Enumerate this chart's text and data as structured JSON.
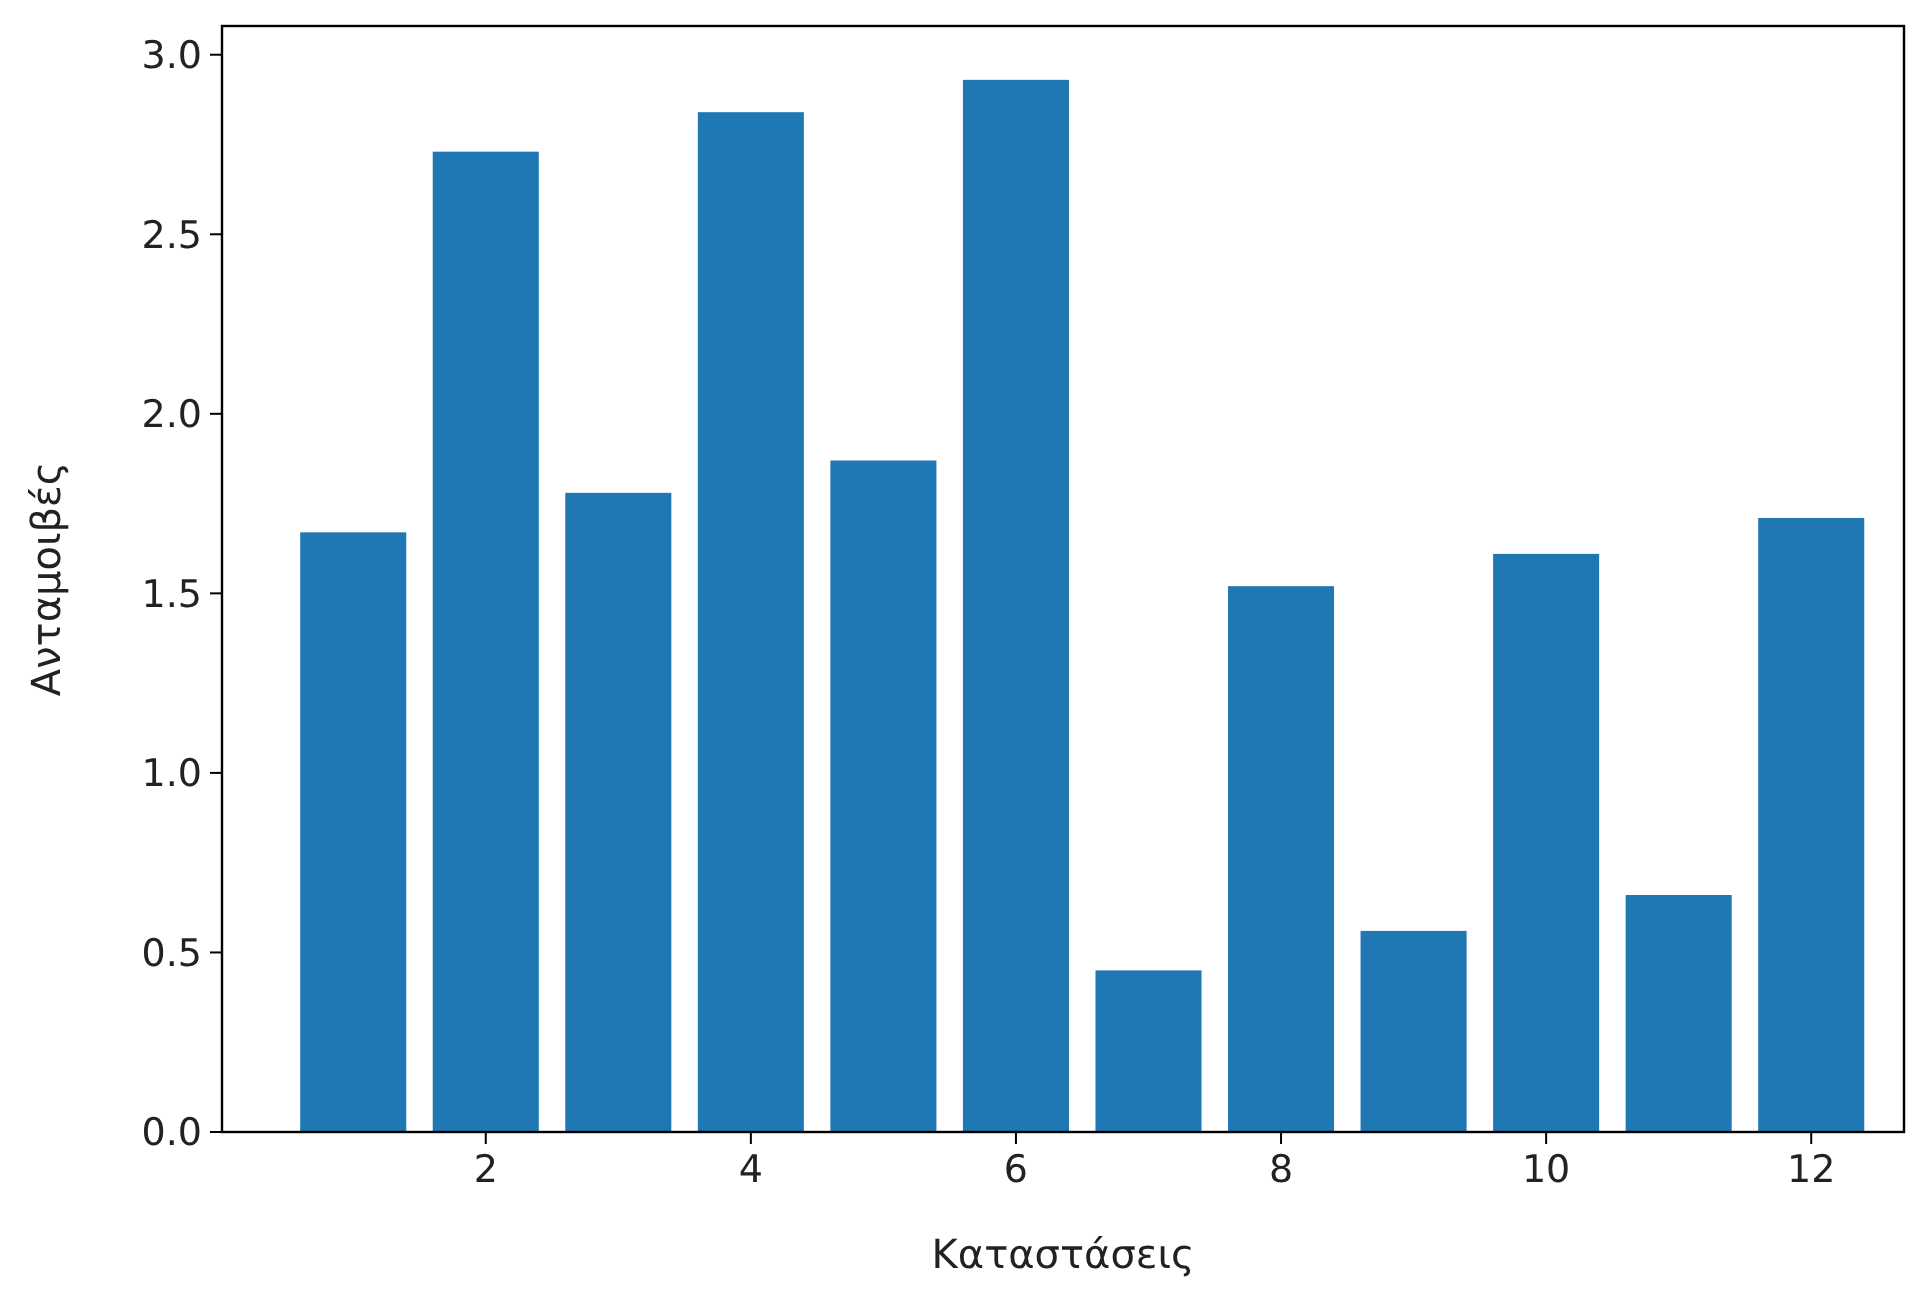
{
  "chart_data": {
    "type": "bar",
    "xlabel": "Καταστάσεις",
    "ylabel": "Ανταμοιβές",
    "color": "#1f77b4",
    "x": [
      1,
      2,
      3,
      4,
      5,
      6,
      7,
      8,
      9,
      10,
      11,
      12
    ],
    "values": [
      1.67,
      2.73,
      1.78,
      2.84,
      1.87,
      2.93,
      0.45,
      1.52,
      0.56,
      1.61,
      0.66,
      1.71
    ],
    "xlim": [
      0.01,
      12.7
    ],
    "xticks": [
      2,
      4,
      6,
      8,
      10,
      12
    ],
    "ylim": [
      0,
      3.08
    ],
    "yticks": [
      {
        "value": 0,
        "label": "0.0"
      },
      {
        "value": 0.5,
        "label": "0.5"
      },
      {
        "value": 1,
        "label": "1.0"
      },
      {
        "value": 1.5,
        "label": "1.5"
      },
      {
        "value": 2,
        "label": "2.0"
      },
      {
        "value": 2.5,
        "label": "2.5"
      },
      {
        "value": 3,
        "label": "3.0"
      }
    ],
    "grid": false
  }
}
